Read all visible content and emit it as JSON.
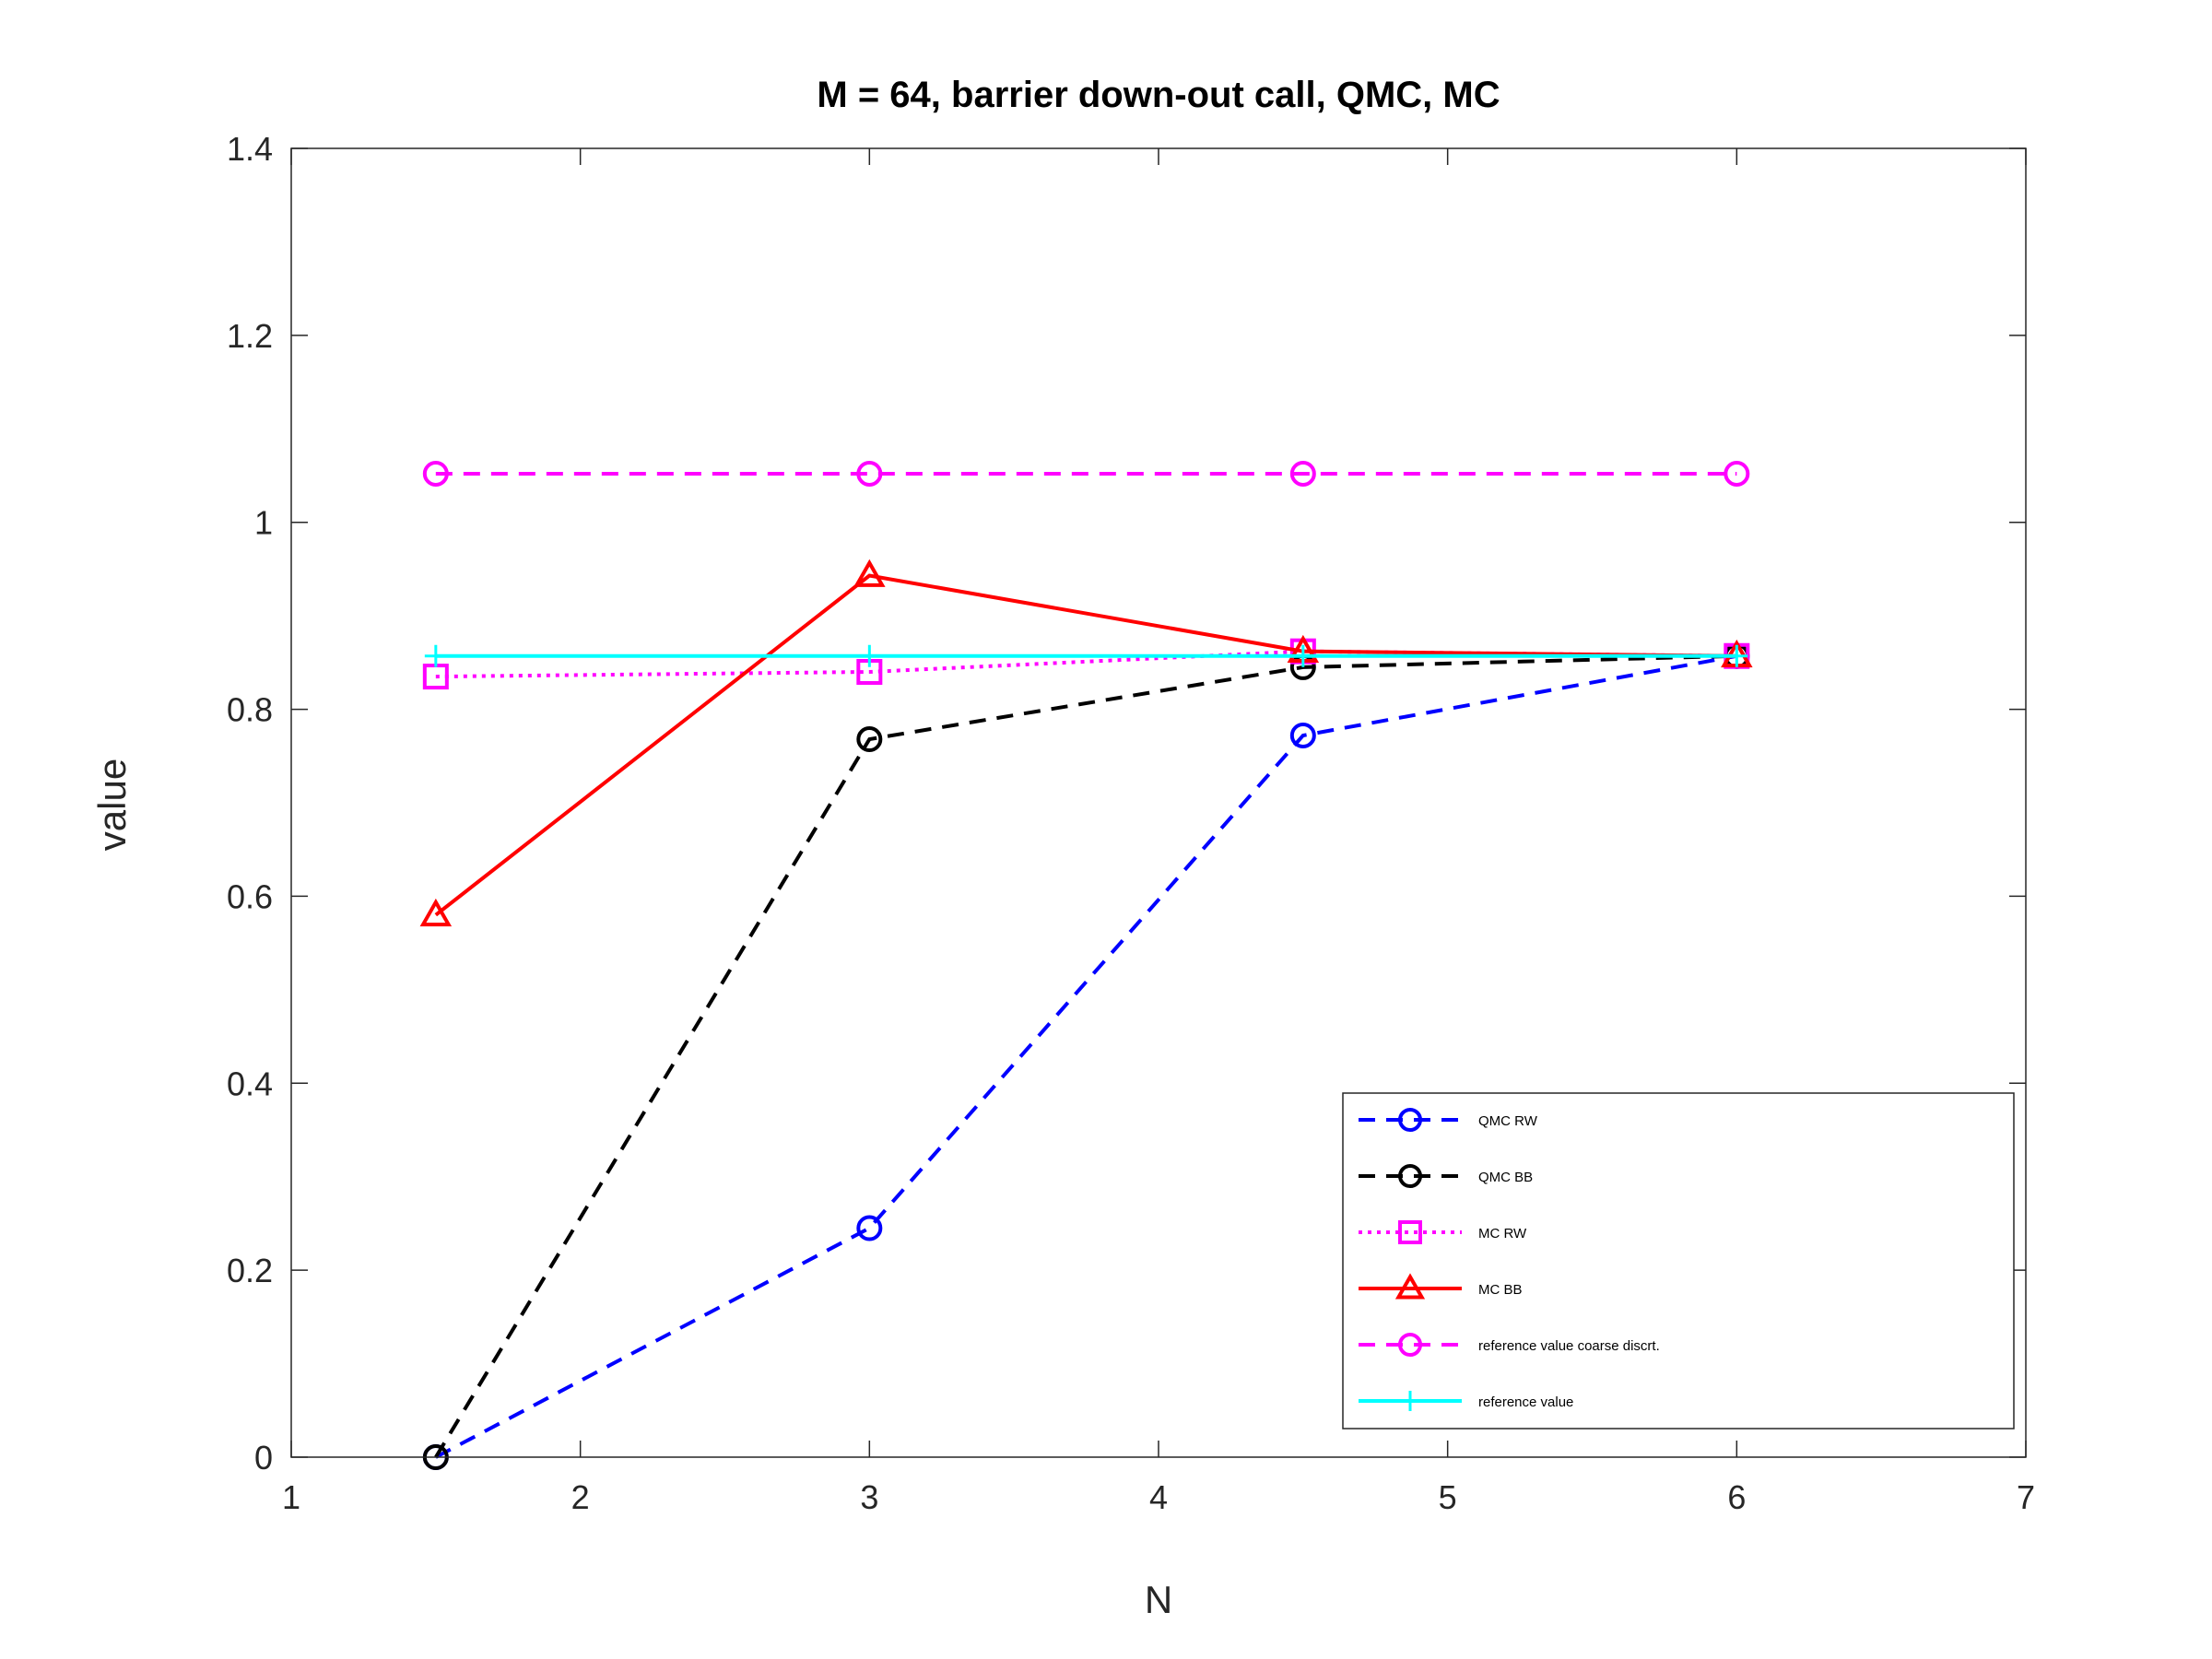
{
  "chart_data": {
    "type": "line",
    "title": "M = 64, barrier down-out call, QMC, MC",
    "xlabel": "N",
    "ylabel": "value",
    "xlim": [
      1,
      7
    ],
    "ylim": [
      0,
      1.4
    ],
    "xticks": [
      1,
      2,
      3,
      4,
      5,
      6,
      7
    ],
    "yticks": [
      0,
      0.2,
      0.4,
      0.6,
      0.8,
      1,
      1.2,
      1.4
    ],
    "xtick_labels": [
      "1",
      "2",
      "3",
      "4",
      "5",
      "6",
      "7"
    ],
    "ytick_labels": [
      "0",
      "0.2",
      "0.4",
      "0.6",
      "0.8",
      "1",
      "1.2",
      "1.4"
    ],
    "grid": false,
    "legend_position": "bottom-right",
    "x": [
      1.5,
      3,
      4.5,
      6
    ],
    "series": [
      {
        "name": "QMC RW",
        "values": [
          0.0,
          0.245,
          0.772,
          0.857
        ],
        "color": "#0000ff",
        "line_style": "dashed",
        "marker": "circle"
      },
      {
        "name": "QMC BB",
        "values": [
          0.0,
          0.768,
          0.845,
          0.857
        ],
        "color": "#000000",
        "line_style": "dashed",
        "marker": "circle"
      },
      {
        "name": "MC RW",
        "values": [
          0.835,
          0.84,
          0.862,
          0.857
        ],
        "color": "#ff00ff",
        "line_style": "dotted",
        "marker": "square"
      },
      {
        "name": "MC BB",
        "values": [
          0.58,
          0.943,
          0.862,
          0.857
        ],
        "color": "#ff0000",
        "line_style": "solid",
        "marker": "triangle"
      },
      {
        "name": "reference value coarse discrt.",
        "values": [
          1.052,
          1.052,
          1.052,
          1.052
        ],
        "color": "#ff00ff",
        "line_style": "dashed",
        "marker": "circle"
      },
      {
        "name": "reference value",
        "values": [
          0.857,
          0.857,
          0.857,
          0.857
        ],
        "color": "#00ffff",
        "line_style": "solid",
        "marker": "plus"
      }
    ]
  }
}
